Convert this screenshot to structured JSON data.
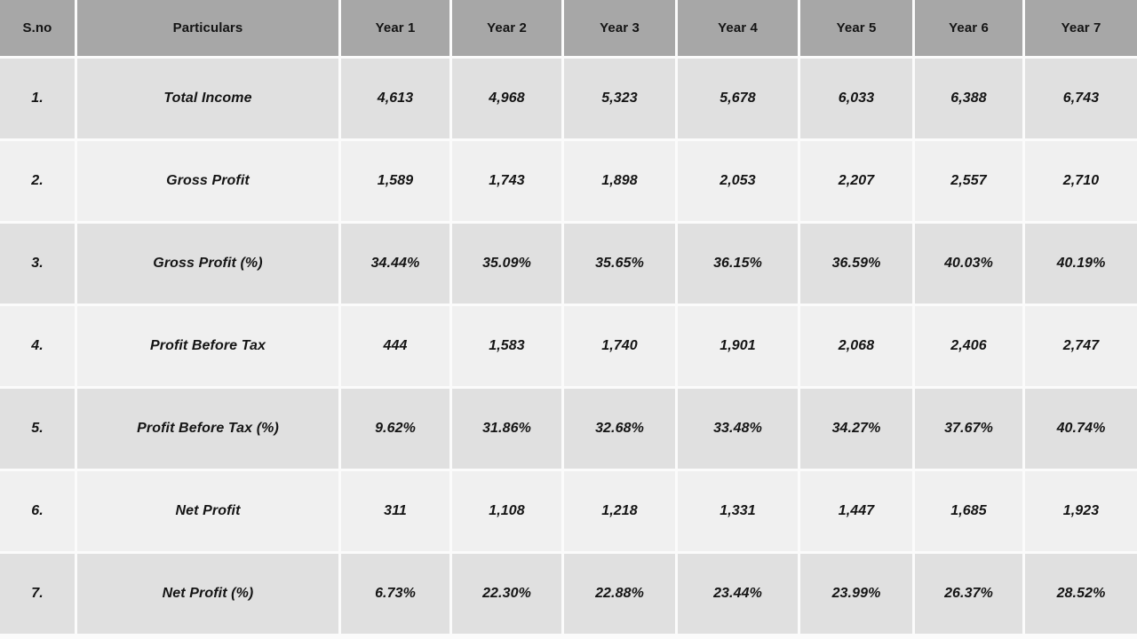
{
  "colors": {
    "header_bg": "#a7a7a7",
    "row_dark_bg": "#e0e0e0",
    "row_light_bg": "#f0f0f0",
    "separator": "#fbfbfb",
    "text": "#141414"
  },
  "table": {
    "headers": [
      "S.no",
      "Particulars",
      "Year 1",
      "Year 2",
      "Year 3",
      "Year 4",
      "Year 5",
      "Year 6",
      "Year 7"
    ],
    "rows": [
      {
        "sno": "1.",
        "label": "Total Income",
        "values": [
          "4,613",
          "4,968",
          "5,323",
          "5,678",
          "6,033",
          "6,388",
          "6,743"
        ]
      },
      {
        "sno": "2.",
        "label": "Gross Profit",
        "values": [
          "1,589",
          "1,743",
          "1,898",
          "2,053",
          "2,207",
          "2,557",
          "2,710"
        ]
      },
      {
        "sno": "3.",
        "label": "Gross Profit (%)",
        "values": [
          "34.44%",
          "35.09%",
          "35.65%",
          "36.15%",
          "36.59%",
          "40.03%",
          "40.19%"
        ]
      },
      {
        "sno": "4.",
        "label": "Profit Before Tax",
        "values": [
          "444",
          "1,583",
          "1,740",
          "1,901",
          "2,068",
          "2,406",
          "2,747"
        ]
      },
      {
        "sno": "5.",
        "label": "Profit Before Tax (%)",
        "values": [
          "9.62%",
          "31.86%",
          "32.68%",
          "33.48%",
          "34.27%",
          "37.67%",
          "40.74%"
        ]
      },
      {
        "sno": "6.",
        "label": "Net Profit",
        "values": [
          "311",
          "1,108",
          "1,218",
          "1,331",
          "1,447",
          "1,685",
          "1,923"
        ]
      },
      {
        "sno": "7.",
        "label": "Net Profit (%)",
        "values": [
          "6.73%",
          "22.30%",
          "22.88%",
          "23.44%",
          "23.99%",
          "26.37%",
          "28.52%"
        ]
      }
    ]
  },
  "chart_data": {
    "type": "table",
    "categories": [
      "Year 1",
      "Year 2",
      "Year 3",
      "Year 4",
      "Year 5",
      "Year 6",
      "Year 7"
    ],
    "series": [
      {
        "name": "Total Income",
        "values": [
          4613,
          4968,
          5323,
          5678,
          6033,
          6388,
          6743
        ]
      },
      {
        "name": "Gross Profit",
        "values": [
          1589,
          1743,
          1898,
          2053,
          2207,
          2557,
          2710
        ]
      },
      {
        "name": "Gross Profit (%)",
        "values": [
          34.44,
          35.09,
          35.65,
          36.15,
          36.59,
          40.03,
          40.19
        ]
      },
      {
        "name": "Profit Before Tax",
        "values": [
          444,
          1583,
          1740,
          1901,
          2068,
          2406,
          2747
        ]
      },
      {
        "name": "Profit Before Tax (%)",
        "values": [
          9.62,
          31.86,
          32.68,
          33.48,
          34.27,
          37.67,
          40.74
        ]
      },
      {
        "name": "Net Profit",
        "values": [
          311,
          1108,
          1218,
          1331,
          1447,
          1685,
          1923
        ]
      },
      {
        "name": "Net Profit (%)",
        "values": [
          6.73,
          22.3,
          22.88,
          23.44,
          23.99,
          26.37,
          28.52
        ]
      }
    ]
  }
}
